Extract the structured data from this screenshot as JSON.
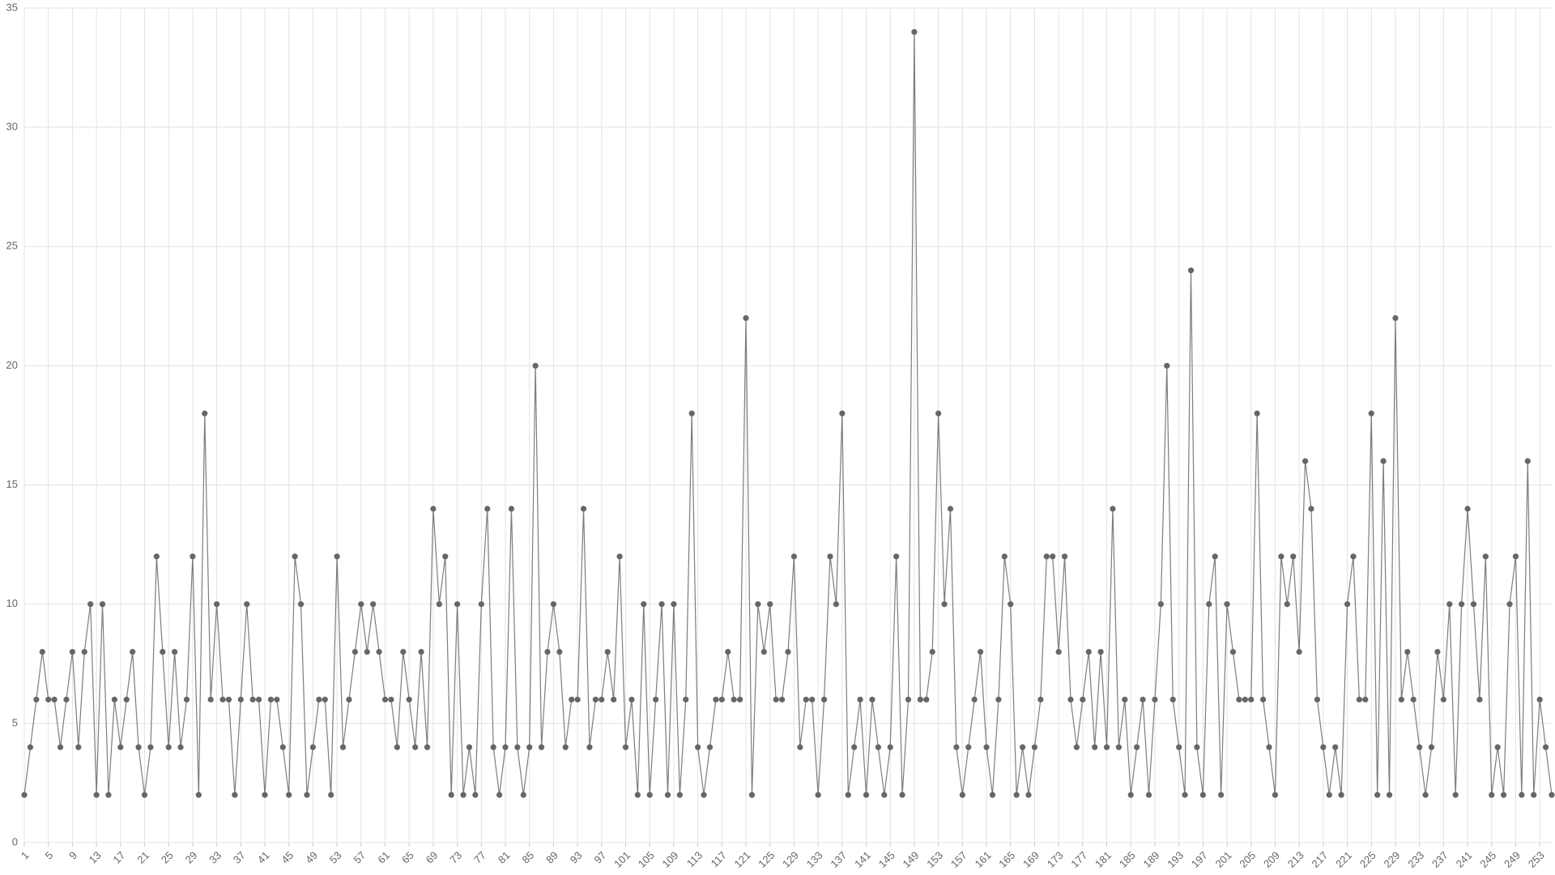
{
  "chart_data": {
    "type": "line",
    "categories": [
      1,
      null,
      null,
      null,
      5,
      null,
      null,
      null,
      9,
      null,
      null,
      null,
      13,
      null,
      null,
      null,
      17,
      null,
      null,
      null,
      21,
      null,
      null,
      null,
      25,
      null,
      null,
      null,
      29,
      null,
      null,
      null,
      33,
      null,
      null,
      null,
      37,
      null,
      null,
      null,
      41,
      null,
      null,
      null,
      45,
      null,
      null,
      null,
      49,
      null,
      null,
      null,
      53,
      null,
      null,
      null,
      57,
      null,
      null,
      null,
      61,
      null,
      null,
      null,
      65,
      null,
      null,
      null,
      69,
      null,
      null,
      null,
      73,
      null,
      null,
      null,
      77,
      null,
      null,
      null,
      81,
      null,
      null,
      null,
      85,
      null,
      null,
      null,
      89,
      null,
      null,
      null,
      93,
      null,
      null,
      null,
      97,
      null,
      null,
      null,
      101,
      null,
      null,
      null,
      105,
      null,
      null,
      null,
      109,
      null,
      null,
      null,
      113,
      null,
      null,
      null,
      117,
      null,
      null,
      null,
      121,
      null,
      null,
      null,
      125,
      null,
      null,
      null,
      129,
      null,
      null,
      null,
      133,
      null,
      null,
      null,
      137,
      null,
      null,
      null,
      141,
      null,
      null,
      null,
      145,
      null,
      null,
      null,
      149,
      null,
      null,
      null,
      153,
      null,
      null,
      null,
      157,
      null,
      null,
      null,
      161,
      null,
      null,
      null,
      165,
      null,
      null,
      null,
      169,
      null,
      null,
      null,
      173,
      null,
      null,
      null,
      177,
      null,
      null,
      null,
      181,
      null,
      null,
      null,
      185,
      null,
      null,
      null,
      189,
      null,
      null,
      null,
      193,
      null,
      null,
      null,
      197,
      null,
      null,
      null,
      201,
      null,
      null,
      null,
      205,
      null,
      null,
      null,
      209,
      null,
      null,
      null,
      213,
      null,
      null,
      null,
      217,
      null,
      null,
      null,
      221,
      null,
      null,
      null,
      225,
      null,
      null,
      null,
      229,
      null,
      null,
      null,
      233,
      null,
      null,
      null,
      237,
      null,
      null,
      null,
      241,
      null,
      null,
      null,
      245,
      null,
      null,
      null,
      249,
      null,
      null,
      null,
      253,
      null,
      null
    ],
    "values": [
      2,
      4,
      6,
      8,
      6,
      6,
      4,
      6,
      8,
      4,
      8,
      10,
      2,
      10,
      2,
      6,
      4,
      6,
      8,
      4,
      2,
      4,
      12,
      8,
      4,
      8,
      4,
      6,
      12,
      2,
      18,
      6,
      10,
      6,
      6,
      2,
      6,
      10,
      6,
      6,
      2,
      6,
      6,
      4,
      2,
      12,
      10,
      2,
      4,
      6,
      6,
      2,
      12,
      4,
      6,
      8,
      10,
      8,
      10,
      8,
      6,
      6,
      4,
      8,
      6,
      4,
      8,
      4,
      14,
      10,
      12,
      2,
      10,
      2,
      4,
      2,
      10,
      14,
      4,
      2,
      4,
      14,
      4,
      2,
      4,
      20,
      4,
      8,
      10,
      8,
      4,
      6,
      6,
      14,
      4,
      6,
      6,
      8,
      6,
      12,
      4,
      6,
      2,
      10,
      2,
      6,
      10,
      2,
      10,
      2,
      6,
      18,
      4,
      2,
      4,
      6,
      6,
      8,
      6,
      6,
      22,
      2,
      10,
      8,
      10,
      6,
      6,
      8,
      12,
      4,
      6,
      6,
      2,
      6,
      12,
      10,
      18,
      2,
      4,
      6,
      2,
      6,
      4,
      2,
      4,
      12,
      2,
      6,
      34,
      6,
      6,
      8,
      18,
      10,
      14,
      4,
      2,
      4,
      6,
      8,
      4,
      2,
      6,
      12,
      10,
      2,
      4,
      2,
      4,
      6,
      12,
      12,
      8,
      12,
      6,
      4,
      6,
      8,
      4,
      8,
      4,
      14,
      4,
      6,
      2,
      4,
      6,
      2,
      6,
      10,
      20,
      6,
      4,
      2,
      24,
      4,
      2,
      10,
      12,
      2,
      10,
      8,
      6,
      6,
      6,
      18,
      6,
      4,
      2,
      12,
      10,
      12,
      8,
      16,
      14,
      6,
      4,
      2,
      4,
      2,
      10,
      12,
      6,
      6,
      18,
      2,
      16,
      2,
      22,
      6,
      8,
      6,
      4,
      2,
      4,
      8,
      6,
      10,
      2,
      10,
      14,
      10,
      6,
      12,
      2,
      4,
      2,
      10,
      12,
      2,
      16,
      2,
      6,
      4,
      2
    ],
    "color": "#666666",
    "ylim": [
      0,
      35
    ],
    "yticks": [
      0,
      5,
      10,
      15,
      20,
      25,
      30,
      35
    ],
    "grid": true
  }
}
